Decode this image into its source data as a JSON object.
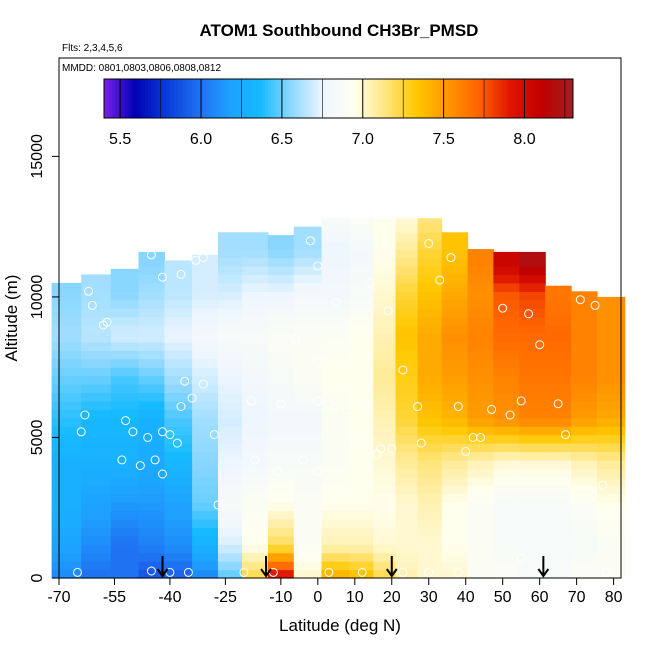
{
  "chart_data": {
    "type": "heatmap",
    "title": "ATOM1 Southbound CH3Br_PMSD",
    "flights_note": "Flts: 2,3,4,5,6",
    "dates_note": "MMDD: 0801,0803,0806,0808,0812",
    "xlabel": "Latitude (deg N)",
    "ylabel": "Altitude (m)",
    "xlim": [
      -70,
      82
    ],
    "ylim": [
      0,
      18500
    ],
    "x_ticks": [
      -70,
      -55,
      -40,
      -25,
      -10,
      0,
      10,
      20,
      30,
      40,
      50,
      60,
      70,
      80
    ],
    "y_ticks": [
      0,
      5000,
      10000,
      15000
    ],
    "colorbar": {
      "range": [
        5.4,
        8.3
      ],
      "ticks": [
        5.5,
        6.0,
        6.5,
        7.0,
        7.5,
        8.0
      ],
      "colors": [
        "#7a22e6",
        "#0000b4",
        "#0a3cd8",
        "#1e6ef0",
        "#1ea0ff",
        "#16baff",
        "#8ed8ff",
        "#eef6ff",
        "#fffff0",
        "#ffe680",
        "#ffc800",
        "#ff9600",
        "#ff6400",
        "#e01400",
        "#c00000",
        "#a02020"
      ]
    },
    "contour_columns": [
      {
        "lat": -68,
        "top": 10500,
        "bands": [
          [
            0,
            6.1
          ],
          [
            1000,
            6.2
          ],
          [
            2500,
            6.3
          ],
          [
            4000,
            6.3
          ],
          [
            5500,
            6.4
          ],
          [
            7000,
            6.5
          ],
          [
            8500,
            6.6
          ],
          [
            10000,
            6.55
          ]
        ]
      },
      {
        "lat": -60,
        "top": 10800,
        "bands": [
          [
            0,
            6.0
          ],
          [
            1000,
            6.1
          ],
          [
            2500,
            6.2
          ],
          [
            4000,
            6.3
          ],
          [
            5500,
            6.35
          ],
          [
            7000,
            6.5
          ],
          [
            8500,
            6.65
          ],
          [
            10000,
            6.6
          ]
        ]
      },
      {
        "lat": -52,
        "top": 11000,
        "bands": [
          [
            0,
            6.0
          ],
          [
            1000,
            6.0
          ],
          [
            2500,
            6.15
          ],
          [
            4000,
            6.3
          ],
          [
            5500,
            6.35
          ],
          [
            7000,
            6.45
          ],
          [
            8500,
            6.7
          ],
          [
            10000,
            6.55
          ]
        ]
      },
      {
        "lat": -45,
        "top": 11600,
        "bands": [
          [
            0,
            5.9
          ],
          [
            1000,
            6.05
          ],
          [
            2500,
            6.15
          ],
          [
            4000,
            6.25
          ],
          [
            5500,
            6.3
          ],
          [
            7000,
            6.5
          ],
          [
            8500,
            6.7
          ],
          [
            10000,
            6.6
          ],
          [
            11000,
            6.55
          ]
        ]
      },
      {
        "lat": -38,
        "top": 11300,
        "bands": [
          [
            0,
            5.95
          ],
          [
            1000,
            6.1
          ],
          [
            2500,
            6.2
          ],
          [
            4000,
            6.35
          ],
          [
            5500,
            6.45
          ],
          [
            7000,
            6.6
          ],
          [
            8500,
            6.75
          ],
          [
            10000,
            6.65
          ]
        ]
      },
      {
        "lat": -30,
        "top": 11500,
        "bands": [
          [
            0,
            6.1
          ],
          [
            1000,
            6.3
          ],
          [
            2500,
            6.5
          ],
          [
            4000,
            6.55
          ],
          [
            5500,
            6.6
          ],
          [
            7000,
            6.7
          ],
          [
            8500,
            6.8
          ],
          [
            10000,
            6.7
          ]
        ]
      },
      {
        "lat": -24,
        "top": 12300,
        "bands": [
          [
            0,
            6.5
          ],
          [
            1000,
            6.7
          ],
          [
            2500,
            6.85
          ],
          [
            4000,
            6.75
          ],
          [
            5500,
            6.7
          ],
          [
            7000,
            6.75
          ],
          [
            8500,
            6.85
          ],
          [
            10000,
            6.7
          ],
          [
            11500,
            6.6
          ]
        ]
      },
      {
        "lat": -17,
        "top": 12300,
        "bands": [
          [
            0,
            7.2
          ],
          [
            1000,
            6.95
          ],
          [
            2500,
            6.9
          ],
          [
            4000,
            6.8
          ],
          [
            5500,
            6.75
          ],
          [
            7000,
            6.8
          ],
          [
            8500,
            6.85
          ],
          [
            10000,
            6.75
          ],
          [
            11500,
            6.6
          ]
        ]
      },
      {
        "lat": -10,
        "top": 12200,
        "bands": [
          [
            0,
            7.9
          ],
          [
            1000,
            7.2
          ],
          [
            2500,
            6.95
          ],
          [
            4000,
            6.85
          ],
          [
            5500,
            6.8
          ],
          [
            7000,
            6.85
          ],
          [
            8500,
            6.9
          ],
          [
            10000,
            6.75
          ],
          [
            11500,
            6.55
          ]
        ]
      },
      {
        "lat": -3,
        "top": 12500,
        "bands": [
          [
            0,
            7.0
          ],
          [
            1000,
            6.9
          ],
          [
            2500,
            6.9
          ],
          [
            4000,
            6.85
          ],
          [
            5500,
            6.8
          ],
          [
            7000,
            6.9
          ],
          [
            8500,
            6.9
          ],
          [
            10000,
            6.8
          ],
          [
            11500,
            6.6
          ]
        ]
      },
      {
        "lat": 5,
        "top": 12800,
        "bands": [
          [
            0,
            7.4
          ],
          [
            1000,
            7.05
          ],
          [
            2500,
            6.95
          ],
          [
            4000,
            6.9
          ],
          [
            5500,
            6.9
          ],
          [
            7000,
            6.95
          ],
          [
            8500,
            6.9
          ],
          [
            10000,
            6.8
          ],
          [
            11500,
            6.75
          ],
          [
            12500,
            6.85
          ]
        ]
      },
      {
        "lat": 12,
        "top": 12800,
        "bands": [
          [
            0,
            7.35
          ],
          [
            1000,
            7.05
          ],
          [
            2500,
            6.95
          ],
          [
            4000,
            6.95
          ],
          [
            5500,
            6.95
          ],
          [
            7000,
            6.95
          ],
          [
            8500,
            6.95
          ],
          [
            10000,
            6.85
          ],
          [
            11500,
            6.8
          ],
          [
            12500,
            6.9
          ]
        ]
      },
      {
        "lat": 18,
        "top": 12800,
        "bands": [
          [
            0,
            7.2
          ],
          [
            1000,
            7.0
          ],
          [
            2500,
            6.95
          ],
          [
            4000,
            7.0
          ],
          [
            5500,
            7.05
          ],
          [
            7000,
            7.1
          ],
          [
            8500,
            7.05
          ],
          [
            10000,
            7.0
          ],
          [
            11500,
            6.95
          ],
          [
            12500,
            6.95
          ]
        ]
      },
      {
        "lat": 24,
        "top": 12800,
        "bands": [
          [
            0,
            7.05
          ],
          [
            1000,
            7.0
          ],
          [
            2500,
            7.0
          ],
          [
            4000,
            7.1
          ],
          [
            5500,
            7.25
          ],
          [
            7000,
            7.3
          ],
          [
            8500,
            7.35
          ],
          [
            10000,
            7.25
          ],
          [
            11500,
            7.1
          ],
          [
            12500,
            7.0
          ]
        ]
      },
      {
        "lat": 30,
        "top": 12800,
        "bands": [
          [
            0,
            7.0
          ],
          [
            1000,
            7.0
          ],
          [
            2500,
            7.05
          ],
          [
            4000,
            7.15
          ],
          [
            5500,
            7.35
          ],
          [
            7000,
            7.45
          ],
          [
            8500,
            7.45
          ],
          [
            10000,
            7.35
          ],
          [
            11500,
            7.25
          ],
          [
            12500,
            7.15
          ]
        ]
      },
      {
        "lat": 37,
        "top": 12300,
        "bands": [
          [
            0,
            7.0
          ],
          [
            1000,
            6.95
          ],
          [
            2500,
            6.95
          ],
          [
            4000,
            7.1
          ],
          [
            5500,
            7.4
          ],
          [
            7000,
            7.5
          ],
          [
            8500,
            7.55
          ],
          [
            10000,
            7.45
          ],
          [
            11500,
            7.35
          ]
        ]
      },
      {
        "lat": 44,
        "top": 11700,
        "bands": [
          [
            0,
            6.9
          ],
          [
            1000,
            6.9
          ],
          [
            2500,
            6.9
          ],
          [
            4000,
            7.05
          ],
          [
            5500,
            7.5
          ],
          [
            7000,
            7.55
          ],
          [
            8500,
            7.6
          ],
          [
            10000,
            7.55
          ],
          [
            11000,
            7.6
          ]
        ]
      },
      {
        "lat": 51,
        "top": 11600,
        "bands": [
          [
            0,
            6.9
          ],
          [
            1000,
            6.85
          ],
          [
            2500,
            6.85
          ],
          [
            4000,
            7.0
          ],
          [
            5500,
            7.55
          ],
          [
            7000,
            7.6
          ],
          [
            8500,
            7.7
          ],
          [
            10000,
            7.75
          ],
          [
            11000,
            8.05
          ]
        ]
      },
      {
        "lat": 58,
        "top": 11600,
        "bands": [
          [
            0,
            6.85
          ],
          [
            1000,
            6.85
          ],
          [
            2500,
            6.85
          ],
          [
            4000,
            7.0
          ],
          [
            5500,
            7.6
          ],
          [
            7000,
            7.65
          ],
          [
            8500,
            7.7
          ],
          [
            10000,
            7.8
          ],
          [
            11000,
            8.2
          ]
        ]
      },
      {
        "lat": 65,
        "top": 10400,
        "bands": [
          [
            0,
            6.85
          ],
          [
            1000,
            6.85
          ],
          [
            2500,
            6.85
          ],
          [
            4000,
            7.0
          ],
          [
            5500,
            7.6
          ],
          [
            7000,
            7.65
          ],
          [
            8500,
            7.7
          ],
          [
            9800,
            7.65
          ]
        ]
      },
      {
        "lat": 72,
        "top": 10200,
        "bands": [
          [
            0,
            6.9
          ],
          [
            1000,
            6.85
          ],
          [
            2500,
            6.9
          ],
          [
            4000,
            7.05
          ],
          [
            5500,
            7.5
          ],
          [
            7000,
            7.6
          ],
          [
            8500,
            7.6
          ]
        ]
      },
      {
        "lat": 79,
        "top": 10000,
        "bands": [
          [
            0,
            6.9
          ],
          [
            1000,
            6.9
          ],
          [
            2500,
            6.95
          ],
          [
            4000,
            7.1
          ],
          [
            5500,
            7.45
          ],
          [
            7000,
            7.55
          ],
          [
            8500,
            7.55
          ]
        ]
      }
    ],
    "observations": [
      [
        -65,
        200
      ],
      [
        -62,
        10200
      ],
      [
        -61,
        9700
      ],
      [
        -58,
        9000
      ],
      [
        -57,
        9100
      ],
      [
        -63,
        5800
      ],
      [
        -64,
        5200
      ],
      [
        -52,
        5600
      ],
      [
        -53,
        4200
      ],
      [
        -50,
        5200
      ],
      [
        -48,
        4000
      ],
      [
        -46,
        5000
      ],
      [
        -44,
        4200
      ],
      [
        -42,
        5200
      ],
      [
        -42,
        3700
      ],
      [
        -40,
        5100
      ],
      [
        -38,
        4800
      ],
      [
        -37,
        6100
      ],
      [
        -36,
        7000
      ],
      [
        -34,
        6400
      ],
      [
        -31,
        6900
      ],
      [
        -45,
        11500
      ],
      [
        -42,
        10700
      ],
      [
        -37,
        10800
      ],
      [
        -33,
        11300
      ],
      [
        -31,
        11400
      ],
      [
        -27,
        2600
      ],
      [
        -28,
        5100
      ],
      [
        -18,
        6300
      ],
      [
        -17,
        4200
      ],
      [
        -10,
        6200
      ],
      [
        -11,
        3800
      ],
      [
        -6,
        8500
      ],
      [
        -2,
        12000
      ],
      [
        0,
        11100
      ],
      [
        0,
        7700
      ],
      [
        -4,
        4200
      ],
      [
        0,
        6300
      ],
      [
        0,
        3800
      ],
      [
        3,
        6200
      ],
      [
        5,
        9800
      ],
      [
        8,
        6000
      ],
      [
        9,
        5000
      ],
      [
        11,
        4800
      ],
      [
        13,
        6200
      ],
      [
        14,
        10500
      ],
      [
        16,
        4400
      ],
      [
        17,
        4600
      ],
      [
        19,
        9500
      ],
      [
        20,
        4600
      ],
      [
        23,
        7400
      ],
      [
        27,
        6100
      ],
      [
        28,
        4800
      ],
      [
        30,
        11900
      ],
      [
        33,
        10600
      ],
      [
        36,
        11400
      ],
      [
        38,
        6100
      ],
      [
        40,
        4500
      ],
      [
        42,
        5000
      ],
      [
        44,
        5000
      ],
      [
        47,
        6000
      ],
      [
        50,
        9600
      ],
      [
        52,
        5800
      ],
      [
        55,
        6300
      ],
      [
        57,
        9400
      ],
      [
        60,
        8300
      ],
      [
        65,
        6200
      ],
      [
        67,
        5100
      ],
      [
        71,
        9900
      ],
      [
        75,
        9700
      ],
      [
        77,
        3300
      ],
      [
        -45,
        250
      ],
      [
        -40,
        200
      ],
      [
        -35,
        200
      ],
      [
        -20,
        200
      ],
      [
        -12,
        200
      ],
      [
        3,
        200
      ],
      [
        12,
        200
      ],
      [
        23,
        200
      ],
      [
        30,
        200
      ],
      [
        38,
        200
      ],
      [
        55,
        700
      ],
      [
        78,
        200
      ]
    ],
    "arrows_lat": [
      -42,
      -14,
      20,
      61
    ]
  }
}
